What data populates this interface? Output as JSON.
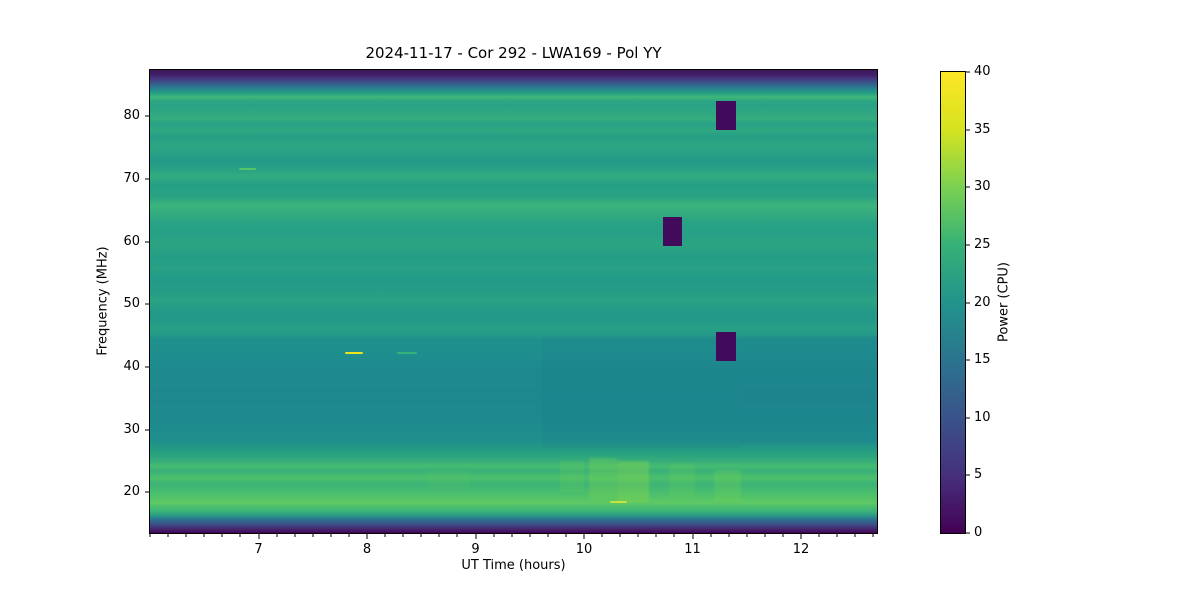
{
  "title": "2024-11-17 - Cor 292 - LWA169 - Pol YY",
  "xlabel": "UT Time (hours)",
  "ylabel": "Frequency (MHz)",
  "colorbar": {
    "label": "Power (CPU)",
    "vmin": 0,
    "vmax": 40,
    "ticks": [
      0,
      5,
      10,
      15,
      20,
      25,
      30,
      35,
      40
    ],
    "colormap": "viridis",
    "gradient": [
      {
        "v": 0,
        "c": "#440154"
      },
      {
        "v": 5,
        "c": "#46307e"
      },
      {
        "v": 10,
        "c": "#3a538b"
      },
      {
        "v": 15,
        "c": "#2b748e"
      },
      {
        "v": 20,
        "c": "#21948b"
      },
      {
        "v": 25,
        "c": "#36b177"
      },
      {
        "v": 30,
        "c": "#7ad151"
      },
      {
        "v": 35,
        "c": "#d6e31f"
      },
      {
        "v": 40,
        "c": "#fde725"
      }
    ]
  },
  "chart_data": {
    "type": "heatmap",
    "title": "2024-11-17 - Cor 292 - LWA169 - Pol YY",
    "xlabel": "UT Time (hours)",
    "ylabel": "Frequency (MHz)",
    "zlabel": "Power (CPU)",
    "x_range": [
      6.0,
      12.7
    ],
    "y_range": [
      13.5,
      87.4
    ],
    "z_range": [
      0,
      40
    ],
    "x_ticks": [
      7,
      8,
      9,
      10,
      11,
      12
    ],
    "x_minor_tick_interval": 0.16667,
    "y_ticks": [
      20,
      30,
      40,
      50,
      60,
      70,
      80
    ],
    "grid": false,
    "legend": false,
    "description": "LWA dynamic spectrum: broadband teal-green background (power ~16-23 CPU) with dark band-edge cutoffs at top and bottom, three zero-power dropout rectangles, narrowband RFI bursts, and mottled ionospheric enhancement below 26 MHz.",
    "background_profile": [
      {
        "f": 87.4,
        "c": "#3c1658",
        "p": 1
      },
      {
        "f": 86.6,
        "c": "#422069",
        "p": 3
      },
      {
        "f": 86.0,
        "c": "#453780",
        "p": 6
      },
      {
        "f": 85.2,
        "c": "#345f8d",
        "p": 10
      },
      {
        "f": 84.4,
        "c": "#27838e",
        "p": 13
      },
      {
        "f": 83.7,
        "c": "#25a083",
        "p": 20
      },
      {
        "f": 83.1,
        "c": "#3eb77b",
        "p": 24
      },
      {
        "f": 82.4,
        "c": "#2ca584",
        "p": 21
      },
      {
        "f": 81.6,
        "c": "#28a285",
        "p": 21
      },
      {
        "f": 80.4,
        "c": "#2fa881",
        "p": 22
      },
      {
        "f": 79.6,
        "c": "#35ac7e",
        "p": 22
      },
      {
        "f": 78.7,
        "c": "#27a086",
        "p": 20
      },
      {
        "f": 77.8,
        "c": "#30a981",
        "p": 22
      },
      {
        "f": 76.8,
        "c": "#259e86",
        "p": 20
      },
      {
        "f": 75.5,
        "c": "#2ca583",
        "p": 21
      },
      {
        "f": 74.2,
        "c": "#28a285",
        "p": 21
      },
      {
        "f": 72.9,
        "c": "#239a88",
        "p": 19
      },
      {
        "f": 71.7,
        "c": "#27a086",
        "p": 20
      },
      {
        "f": 70.4,
        "c": "#33ab7f",
        "p": 22
      },
      {
        "f": 69.1,
        "c": "#26a085",
        "p": 20
      },
      {
        "f": 67.2,
        "c": "#29a284",
        "p": 21
      },
      {
        "f": 65.8,
        "c": "#3bb47c",
        "p": 23
      },
      {
        "f": 64.3,
        "c": "#33ab80",
        "p": 22
      },
      {
        "f": 63.0,
        "c": "#29a285",
        "p": 21
      },
      {
        "f": 61.4,
        "c": "#26a086",
        "p": 20
      },
      {
        "f": 59.5,
        "c": "#2ca481",
        "p": 21
      },
      {
        "f": 57.6,
        "c": "#249d87",
        "p": 20
      },
      {
        "f": 55.7,
        "c": "#27a085",
        "p": 20
      },
      {
        "f": 53.8,
        "c": "#229a89",
        "p": 19
      },
      {
        "f": 51.9,
        "c": "#259d86",
        "p": 20
      },
      {
        "f": 50.6,
        "c": "#2ba382",
        "p": 21
      },
      {
        "f": 49.3,
        "c": "#249c87",
        "p": 20
      },
      {
        "f": 47.7,
        "c": "#219889",
        "p": 19
      },
      {
        "f": 46.1,
        "c": "#27a085",
        "p": 20
      },
      {
        "f": 45.1,
        "c": "#25998a",
        "p": 19
      },
      {
        "f": 44.4,
        "c": "#1f908d",
        "p": 17
      },
      {
        "f": 42.6,
        "c": "#1f8f8e",
        "p": 17
      },
      {
        "f": 39.4,
        "c": "#1e8a8e",
        "p": 16
      },
      {
        "f": 35.4,
        "c": "#1e888e",
        "p": 16
      },
      {
        "f": 31.4,
        "c": "#1e8a8e",
        "p": 16
      },
      {
        "f": 28.2,
        "c": "#1f8f8d",
        "p": 17
      },
      {
        "f": 26.3,
        "c": "#26a07f",
        "p": 20
      },
      {
        "f": 25.0,
        "c": "#36ad7b",
        "p": 23
      },
      {
        "f": 24.2,
        "c": "#46bb71",
        "p": 25
      },
      {
        "f": 23.4,
        "c": "#39b078",
        "p": 23
      },
      {
        "f": 22.3,
        "c": "#4dc06c",
        "p": 25
      },
      {
        "f": 21.3,
        "c": "#3cb376",
        "p": 24
      },
      {
        "f": 20.2,
        "c": "#47bc70",
        "p": 25
      },
      {
        "f": 19.1,
        "c": "#52c369",
        "p": 26
      },
      {
        "f": 18.4,
        "c": "#5fc963",
        "p": 27
      },
      {
        "f": 17.6,
        "c": "#49bd6f",
        "p": 25
      },
      {
        "f": 16.8,
        "c": "#37ae7a",
        "p": 23
      },
      {
        "f": 16.2,
        "c": "#27958b",
        "p": 18
      },
      {
        "f": 15.6,
        "c": "#2c6f8e",
        "p": 11
      },
      {
        "f": 14.8,
        "c": "#3f4a84",
        "p": 6
      },
      {
        "f": 14.0,
        "c": "#451f6a",
        "p": 3
      },
      {
        "f": 13.5,
        "c": "#440254",
        "p": 0
      }
    ],
    "dropouts": [
      {
        "t0": 10.73,
        "t1": 10.9,
        "f0": 59.3,
        "f1": 64.0,
        "power": 0,
        "c": "#420a5b"
      },
      {
        "t0": 11.22,
        "t1": 11.4,
        "f0": 77.8,
        "f1": 82.5,
        "power": 0,
        "c": "#420a5b"
      },
      {
        "t0": 11.22,
        "t1": 11.4,
        "f0": 40.9,
        "f1": 45.6,
        "power": 0,
        "c": "#420a5b"
      }
    ],
    "bursts": [
      {
        "t0": 7.8,
        "t1": 7.96,
        "f": 42.2,
        "df": 0.35,
        "power": 38,
        "c": "#efe51f"
      },
      {
        "t0": 8.28,
        "t1": 8.46,
        "f": 42.2,
        "df": 0.3,
        "power": 23,
        "c": "#35b277"
      },
      {
        "t0": 6.82,
        "t1": 6.98,
        "f": 71.6,
        "df": 0.3,
        "power": 26,
        "c": "#55c566"
      },
      {
        "t0": 10.24,
        "t1": 10.4,
        "f": 18.4,
        "df": 0.35,
        "power": 33,
        "c": "#c9e13b"
      }
    ],
    "patches": [
      {
        "t0": 9.78,
        "t1": 10.0,
        "f0": 20.0,
        "f1": 25.0,
        "c": "rgba(98,201,94,0.30)"
      },
      {
        "t0": 10.05,
        "t1": 10.3,
        "f0": 19.0,
        "f1": 25.5,
        "c": "rgba(116,208,84,0.38)"
      },
      {
        "t0": 10.3,
        "t1": 10.6,
        "f0": 18.5,
        "f1": 25.0,
        "c": "rgba(131,212,77,0.42)"
      },
      {
        "t0": 10.78,
        "t1": 11.02,
        "f0": 19.0,
        "f1": 24.5,
        "c": "rgba(98,201,94,0.30)"
      },
      {
        "t0": 11.2,
        "t1": 11.45,
        "f0": 18.5,
        "f1": 23.5,
        "c": "rgba(108,205,88,0.33)"
      },
      {
        "t0": 8.55,
        "t1": 8.95,
        "f0": 20.5,
        "f1": 23.5,
        "c": "rgba(85,196,101,0.20)"
      }
    ],
    "shading": [
      {
        "t0": 11.45,
        "t1": 12.7,
        "f0": 27.5,
        "f1": 45.0,
        "c": "rgba(25,85,140,0.08)"
      },
      {
        "t0": 9.6,
        "t1": 11.45,
        "f0": 27.0,
        "f1": 45.0,
        "c": "rgba(25,85,140,0.05)"
      }
    ]
  }
}
